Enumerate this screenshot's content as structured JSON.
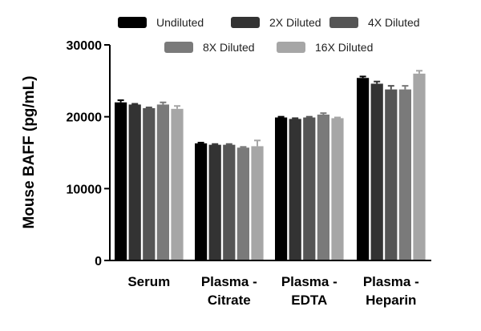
{
  "chart_data": {
    "type": "bar",
    "title": "",
    "xlabel": "",
    "ylabel": "Mouse BAFF (pg/mL)",
    "ylim": [
      0,
      30000
    ],
    "yticks": [
      "0",
      "10000",
      "20000",
      "30000"
    ],
    "ytick_values": [
      0,
      10000,
      20000,
      30000
    ],
    "grid": false,
    "legend_position": "top",
    "categories": [
      [
        "Serum"
      ],
      [
        "Plasma -",
        "Citrate"
      ],
      [
        "Plasma -",
        "EDTA"
      ],
      [
        "Plasma -",
        "Heparin"
      ]
    ],
    "series": [
      {
        "name": "Undiluted",
        "color": "#000000",
        "values": [
          22000,
          16300,
          19900,
          25400
        ],
        "errors": [
          300,
          100,
          100,
          200
        ]
      },
      {
        "name": "2X Diluted",
        "color": "#333333",
        "values": [
          21700,
          16100,
          19700,
          24600
        ],
        "errors": [
          100,
          100,
          100,
          300
        ]
      },
      {
        "name": "4X Diluted",
        "color": "#555555",
        "values": [
          21200,
          16100,
          19900,
          23800
        ],
        "errors": [
          100,
          100,
          100,
          500
        ]
      },
      {
        "name": "8X Diluted",
        "color": "#7a7a7a",
        "values": [
          21700,
          15700,
          20300,
          23800
        ],
        "errors": [
          300,
          100,
          200,
          500
        ]
      },
      {
        "name": "16X Diluted",
        "color": "#a6a6a6",
        "values": [
          21100,
          15900,
          19800,
          26000
        ],
        "errors": [
          400,
          800,
          100,
          400
        ]
      }
    ]
  }
}
